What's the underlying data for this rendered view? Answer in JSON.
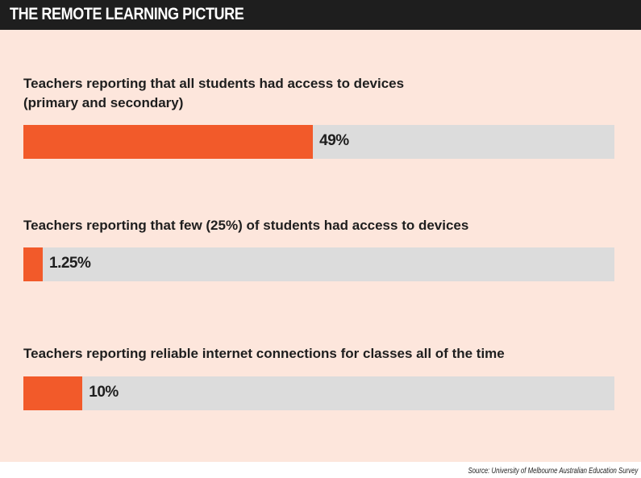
{
  "header": {
    "title": "THE REMOTE LEARNING PICTURE"
  },
  "colors": {
    "bar": "#f25a2a",
    "track": "#dcdcdc",
    "panel": "#fde6dc",
    "header": "#1e1e1e"
  },
  "chart_data": {
    "type": "bar",
    "orientation": "horizontal",
    "title": "THE REMOTE LEARNING PICTURE",
    "xlim": [
      0,
      100
    ],
    "grid": false,
    "categories": [
      "Teachers reporting that all students had access to devices (primary and secondary)",
      "Teachers reporting that few (25%) of students had access to devices",
      "Teachers reporting reliable internet connections for classes all of the time"
    ],
    "values": [
      49,
      1.25,
      10
    ],
    "value_labels": [
      "49%",
      "1.25%",
      "10%"
    ],
    "unit": "%"
  },
  "source": "Source: University of Melbourne Australian Education Survey"
}
